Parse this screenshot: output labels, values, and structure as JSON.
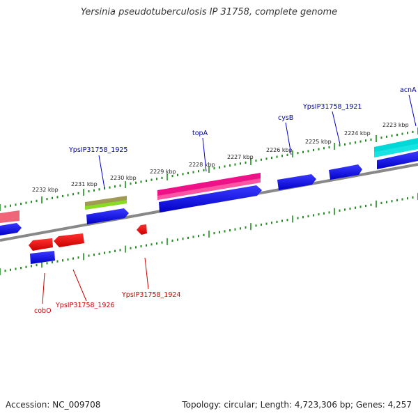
{
  "title": "Yersinia pseudotuberculosis IP 31758, complete genome",
  "footer": {
    "accession": "Accession: NC_009708",
    "stats": "Topology: circular; Length: 4,723,306 bp; Genes: 4,257"
  },
  "colors": {
    "forward_cds": "#0000ee",
    "reverse_cds": "#ee0000",
    "tick": "#228b22",
    "backbone": "#888888",
    "forward_label": "#0000aa",
    "reverse_label": "#cc0000"
  },
  "ticks": [
    {
      "label": "2223 kbp"
    },
    {
      "label": "2224 kbp"
    },
    {
      "label": "2225 kbp"
    },
    {
      "label": "2226 kbp"
    },
    {
      "label": "2227 kbp"
    },
    {
      "label": "2228 kbp"
    },
    {
      "label": "2229 kbp"
    },
    {
      "label": "2230 kbp"
    },
    {
      "label": "2231 kbp"
    },
    {
      "label": "2232 kbp"
    }
  ],
  "gene_labels": {
    "acnA": "acnA",
    "YpsIP31758_1921": "YpsIP31758_1921",
    "cysB": "cysB",
    "topA": "topA",
    "YpsIP31758_1925": "YpsIP31758_1925",
    "cobO": "cobO",
    "YpsIP31758_1926": "YpsIP31758_1926",
    "YpsIP31758_1924": "YpsIP31758_1924"
  }
}
